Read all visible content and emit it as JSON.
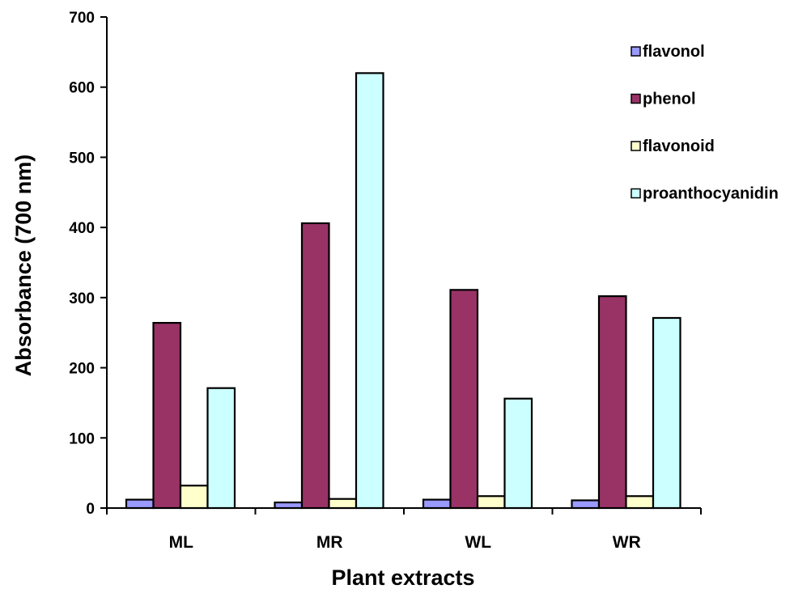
{
  "chart_data": {
    "type": "bar",
    "title": "",
    "xlabel": "Plant extracts",
    "ylabel": "Absorbance (700 nm)",
    "ylim": [
      0,
      700
    ],
    "yticks": [
      0,
      100,
      200,
      300,
      400,
      500,
      600,
      700
    ],
    "categories": [
      "ML",
      "MR",
      "WL",
      "WR"
    ],
    "series": [
      {
        "name": "flavonol",
        "color": "#9999ff",
        "values": [
          12,
          8,
          12,
          11
        ]
      },
      {
        "name": "phenol",
        "color": "#993366",
        "values": [
          264,
          406,
          311,
          302
        ]
      },
      {
        "name": "flavonoid",
        "color": "#ffffcc",
        "values": [
          32,
          13,
          17,
          17
        ]
      },
      {
        "name": "proanthocyanidin",
        "color": "#ccffff",
        "values": [
          171,
          620,
          156,
          271
        ]
      }
    ],
    "grid": false,
    "legend_position": "right"
  }
}
